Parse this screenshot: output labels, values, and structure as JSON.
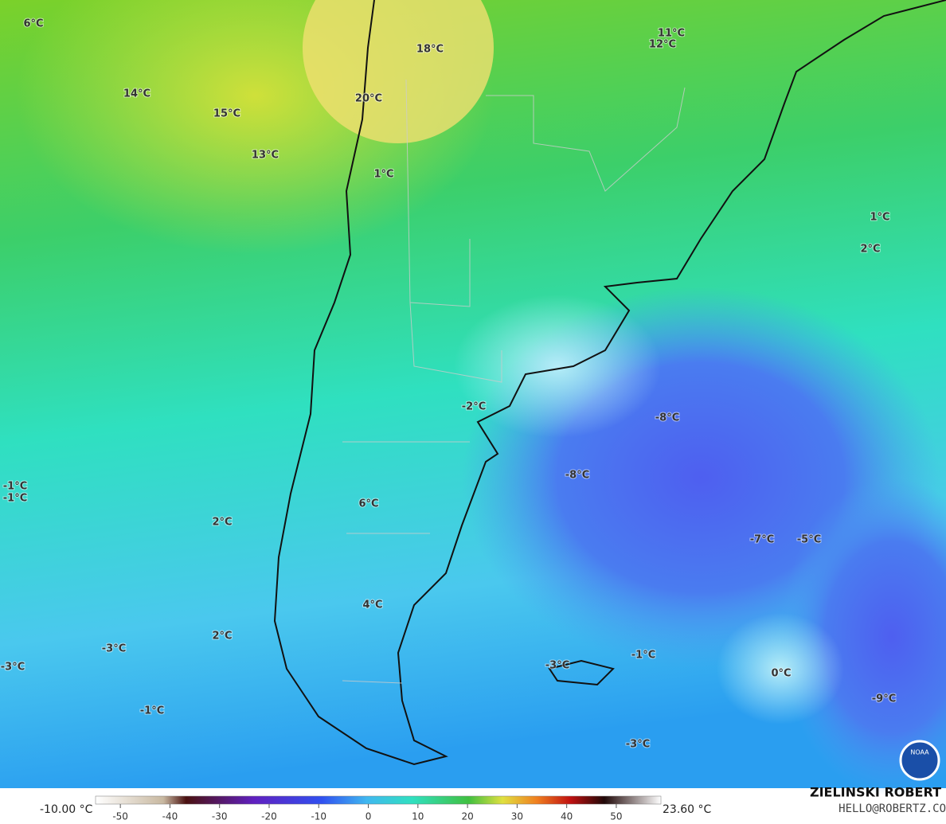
{
  "map": {
    "labels": [
      "6°C",
      "14°C",
      "15°C",
      "13°C",
      "18°C",
      "20°C",
      "11°C",
      "12°C",
      "1°C",
      "1°C",
      "2°C",
      "-2°C",
      "-8°C",
      "-8°C",
      "-1°C",
      "-1°C",
      "6°C",
      "2°C",
      "-7°C",
      "-5°C",
      "4°C",
      "2°C",
      "-3°C",
      "-3°C",
      "-3°C",
      "-1°C",
      "-1°C",
      "0°C",
      "-9°C",
      "-3°C"
    ]
  },
  "colorbar": {
    "min_label": "-10.00 °C",
    "max_label": "23.60 °C",
    "lim": [
      -55,
      59
    ],
    "ticks": [
      -50,
      -40,
      -30,
      -20,
      -10,
      0,
      10,
      20,
      30,
      40,
      50
    ]
  },
  "credits": {
    "name": "ZIELINSKI ROBERT",
    "email": "HELLO@ROBERTZ.CO",
    "logo": "NOAA"
  }
}
